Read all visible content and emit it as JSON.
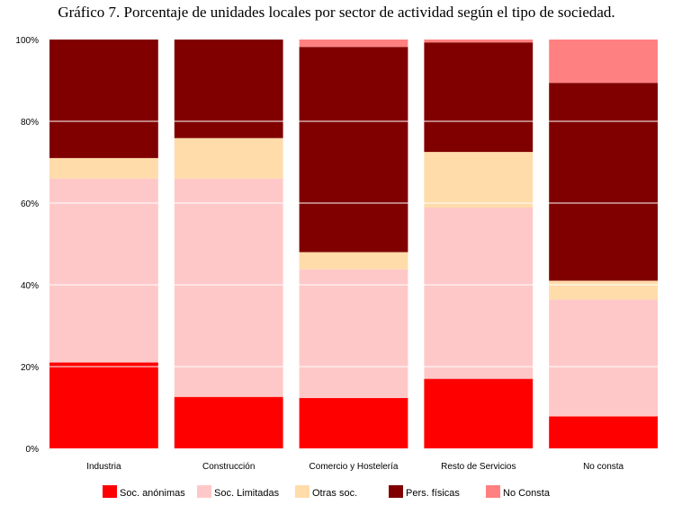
{
  "chart_data": {
    "type": "bar",
    "stacked": true,
    "title": "Gráfico 7. Porcentaje de unidades locales por sector de actividad según el tipo de sociedad.",
    "categories": [
      "Industria",
      "Construcción",
      "Comercio y Hostelería",
      "Resto de Servicios",
      "No consta"
    ],
    "ylim": [
      0,
      100
    ],
    "yticks": [
      "0%",
      "20%",
      "40%",
      "60%",
      "80%",
      "100%"
    ],
    "grid": true,
    "legend_position": "bottom",
    "series": [
      {
        "name": "Soc. anónimas",
        "color": "#ff0000",
        "values": [
          21,
          12.6,
          12.3,
          17,
          7.8
        ]
      },
      {
        "name": "Soc. Limitadas",
        "color": "#ffc8c8",
        "values": [
          45,
          53.4,
          31.5,
          41.9,
          28.6
        ]
      },
      {
        "name": "Otras soc.",
        "color": "#ffdcaa",
        "values": [
          5,
          9.9,
          4.2,
          13.6,
          4.6
        ]
      },
      {
        "name": "Pers. físicas",
        "color": "#800000",
        "values": [
          29,
          24.1,
          50.2,
          26.8,
          48.4
        ]
      },
      {
        "name": "No Consta",
        "color": "#ff8080",
        "values": [
          0,
          0,
          1.8,
          0.7,
          10.6
        ]
      }
    ]
  }
}
